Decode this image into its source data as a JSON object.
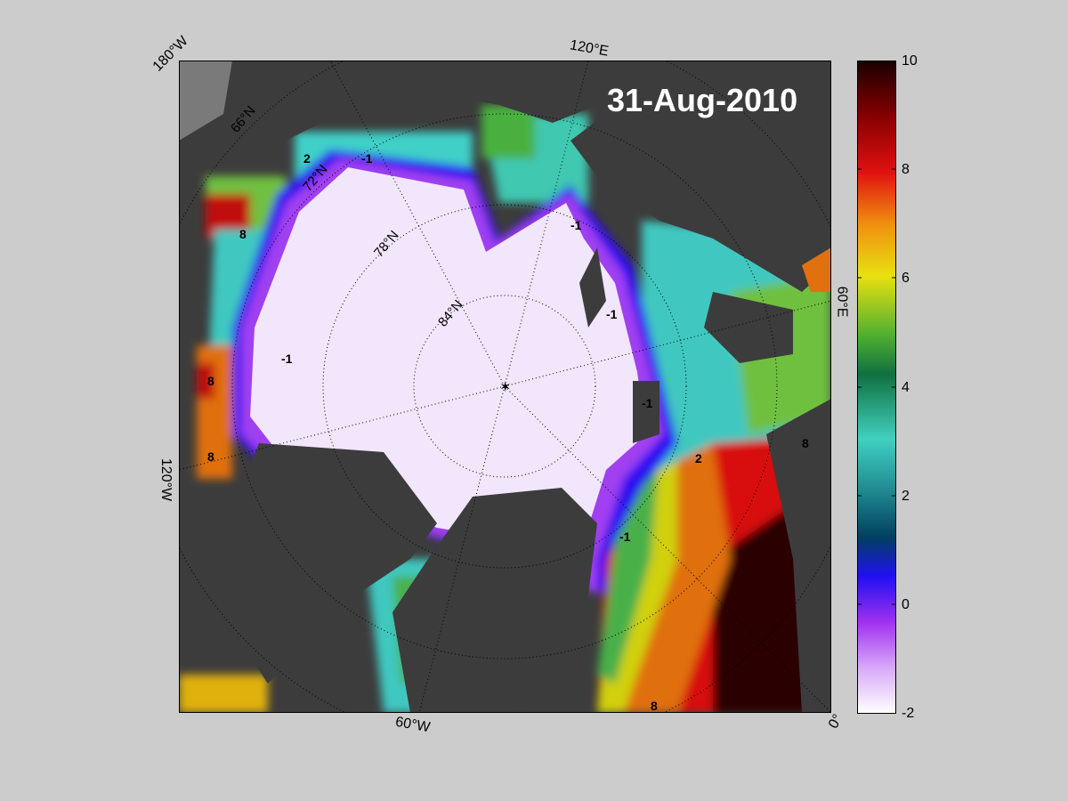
{
  "date": "31-Aug-2010",
  "meridian_labels": {
    "w180": "180°W",
    "e120": "120°E",
    "e60": "60°E",
    "w120": "120°W",
    "w60": "60°W",
    "zero": "0°"
  },
  "latitude_labels": [
    "66°N",
    "72°N",
    "78°N",
    "84°N"
  ],
  "contour_labels": [
    "-1",
    "2",
    "8"
  ],
  "colorbar": {
    "ticks": [
      "10",
      "8",
      "6",
      "4",
      "2",
      "0",
      "-2"
    ],
    "min": -2,
    "max": 10
  },
  "colors": {
    "background": "#cccccc",
    "land": "#3c3c3c",
    "land_light": "#7a7a7a",
    "ice": "#f1e6fb",
    "ice_edge": "#a03cf0",
    "deep_blue": "#2a10f0",
    "teal": "#3ed8d0",
    "green": "#3ca83c",
    "yellow": "#e8d010",
    "orange": "#f07010",
    "red": "#d01010",
    "dark_red": "#200000"
  }
}
